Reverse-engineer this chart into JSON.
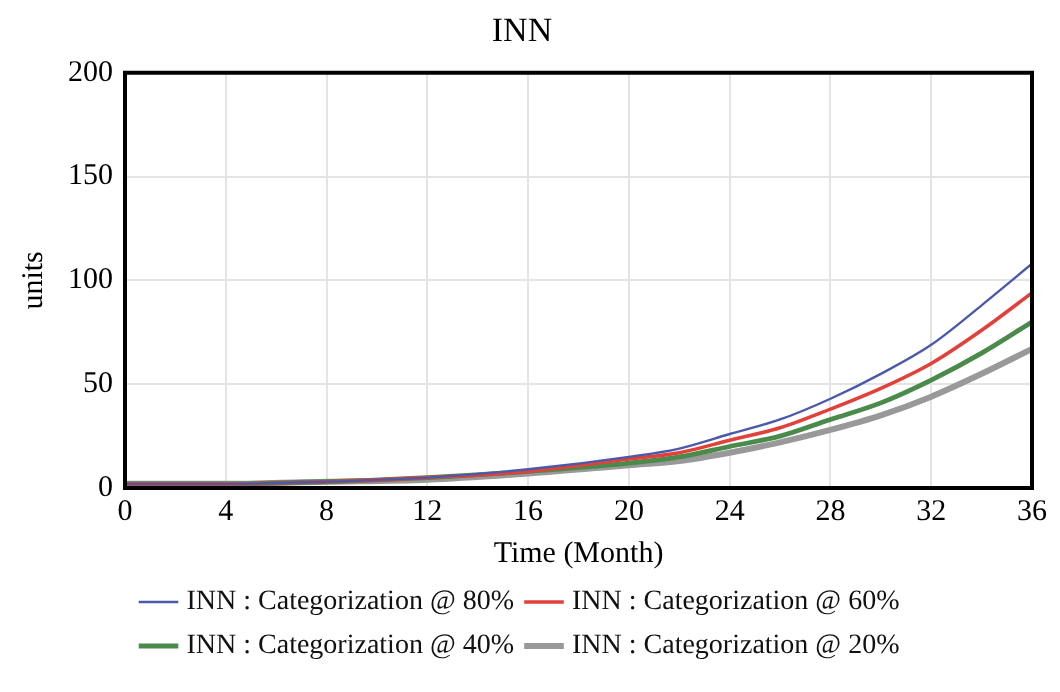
{
  "chart_data": {
    "type": "line",
    "title": "INN",
    "xlabel": "Time (Month)",
    "ylabel": "units",
    "x": [
      0,
      4,
      8,
      12,
      16,
      20,
      22,
      24,
      26,
      28,
      30,
      32,
      34,
      36
    ],
    "series": [
      {
        "name": "INN : Categorization @ 80%",
        "color": "#4a5aa8",
        "values": [
          2,
          2,
          3,
          5,
          9,
          15,
          19,
          26,
          33,
          43,
          55,
          69,
          88,
          108
        ]
      },
      {
        "name": "INN : Categorization @ 60%",
        "color": "#e0413a",
        "values": [
          2,
          2,
          3,
          5,
          8,
          14,
          17,
          23,
          29,
          38,
          48,
          60,
          76,
          94
        ]
      },
      {
        "name": "INN : Categorization @ 40%",
        "color": "#4a8a4a",
        "values": [
          2,
          2,
          3,
          5,
          8,
          12,
          15,
          20,
          25,
          33,
          41,
          52,
          65,
          80
        ]
      },
      {
        "name": "INN : Categorization @ 20%",
        "color": "#999999",
        "values": [
          2,
          2,
          3,
          4,
          7,
          11,
          13,
          17,
          22,
          28,
          35,
          44,
          55,
          67
        ]
      }
    ],
    "xlim": [
      0,
      36
    ],
    "xticks": [
      0,
      4,
      8,
      12,
      16,
      20,
      24,
      28,
      32,
      36
    ],
    "ylim": [
      0,
      200
    ],
    "yticks": [
      0,
      50,
      100,
      150,
      200
    ],
    "grid": true,
    "legend": "bottom",
    "marker": "none",
    "line_style": "solid"
  }
}
